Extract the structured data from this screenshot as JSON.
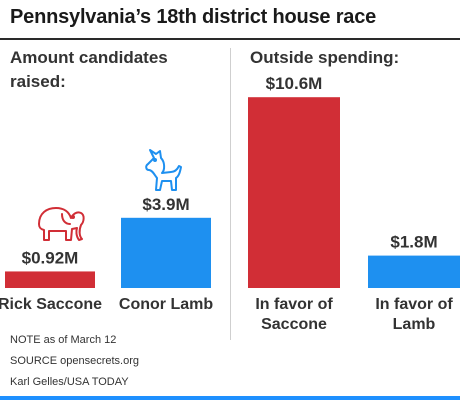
{
  "title": "Pennsylvania’s 18th district house race",
  "left_panel_title": "Amount candidates raised:",
  "right_panel_title": "Outside spending:",
  "notes": {
    "note": "NOTE as of March 12",
    "source": "SOURCE opensecrets.org",
    "credit": "Karl Gelles/USA TODAY"
  },
  "colors": {
    "republican": "#d12e36",
    "democrat": "#1e90f0",
    "footer_rule": "#1e90ff"
  },
  "icons": {
    "republican": "elephant-icon",
    "democrat": "donkey-icon"
  },
  "chart_data": [
    {
      "type": "bar",
      "title": "Amount candidates raised:",
      "unit": "$M",
      "categories": [
        "Rick Saccone",
        "Conor Lamb"
      ],
      "values": [
        0.92,
        3.9
      ],
      "labels": [
        "$0.92M",
        "$3.9M"
      ],
      "colors": [
        "#d12e36",
        "#1e90f0"
      ],
      "ylim": [
        0,
        11
      ]
    },
    {
      "type": "bar",
      "title": "Outside spending:",
      "unit": "$M",
      "categories": [
        "In favor of Saccone",
        "In favor of Lamb"
      ],
      "category_lines": [
        [
          "In favor of",
          "Saccone"
        ],
        [
          "In favor of",
          "Lamb"
        ]
      ],
      "values": [
        10.6,
        1.8
      ],
      "labels": [
        "$10.6M",
        "$1.8M"
      ],
      "colors": [
        "#d12e36",
        "#1e90f0"
      ],
      "ylim": [
        0,
        11
      ]
    }
  ]
}
